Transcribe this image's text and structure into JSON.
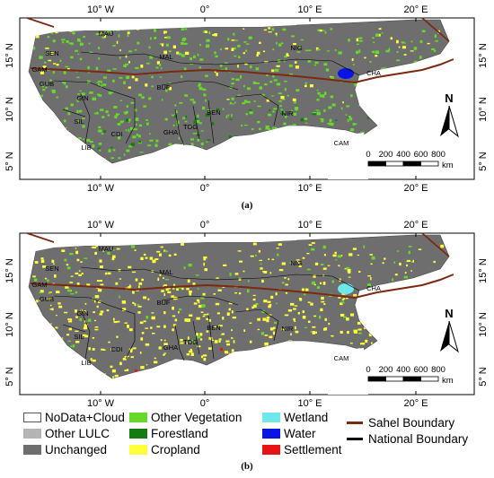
{
  "panels": [
    {
      "caption": "(a)",
      "lon_labels": [
        "10° W",
        "0°",
        "10° E",
        "20° E"
      ],
      "lat_labels": [
        "15° N",
        "10° N",
        "5° N"
      ],
      "country_labels": [
        "MAU",
        "SEN",
        "GAM",
        "GUB",
        "GIN",
        "SIL",
        "LIB",
        "CDI",
        "GHA",
        "TOG",
        "BEN",
        "BUF",
        "MAL",
        "NIG",
        "NIR",
        "CHA",
        "CAM"
      ],
      "scale_bar": {
        "ticks": [
          "0",
          "200",
          "400",
          "600",
          "800"
        ],
        "unit": "km"
      },
      "north_label": "N"
    },
    {
      "caption": "(b)",
      "lon_labels": [
        "10° W",
        "0°",
        "10° E",
        "20° E"
      ],
      "lat_labels": [
        "15° N",
        "10° N",
        "5° N"
      ],
      "country_labels": [
        "MAU",
        "SEN",
        "GAM",
        "GUB",
        "GIN",
        "SIL",
        "LIB",
        "CDI",
        "GHA",
        "TOG",
        "BEN",
        "BUF",
        "MAL",
        "NIG",
        "NIR",
        "CHA",
        "CAM"
      ],
      "scale_bar": {
        "ticks": [
          "0",
          "200",
          "400",
          "600",
          "800"
        ],
        "unit": "km"
      },
      "north_label": "N"
    }
  ],
  "legend": [
    {
      "label": "NoData+Cloud",
      "color": "#ffffff",
      "kind": "fill"
    },
    {
      "label": "Other LULC",
      "color": "#b4b4b4",
      "kind": "fill"
    },
    {
      "label": "Unchanged",
      "color": "#6e6e6e",
      "kind": "fill"
    },
    {
      "label": "Other Vegetation",
      "color": "#66d92b",
      "kind": "fill"
    },
    {
      "label": "Forestland",
      "color": "#157a0f",
      "kind": "fill"
    },
    {
      "label": "Cropland",
      "color": "#ffff3a",
      "kind": "fill"
    },
    {
      "label": "Wetland",
      "color": "#6ee8e8",
      "kind": "fill"
    },
    {
      "label": "Water",
      "color": "#0a14e6",
      "kind": "fill"
    },
    {
      "label": "Settlement",
      "color": "#e61414",
      "kind": "fill"
    },
    {
      "label": "Sahel Boundary",
      "color": "#7a2a10",
      "kind": "line"
    },
    {
      "label": "National Boundary",
      "color": "#000000",
      "kind": "line"
    }
  ]
}
